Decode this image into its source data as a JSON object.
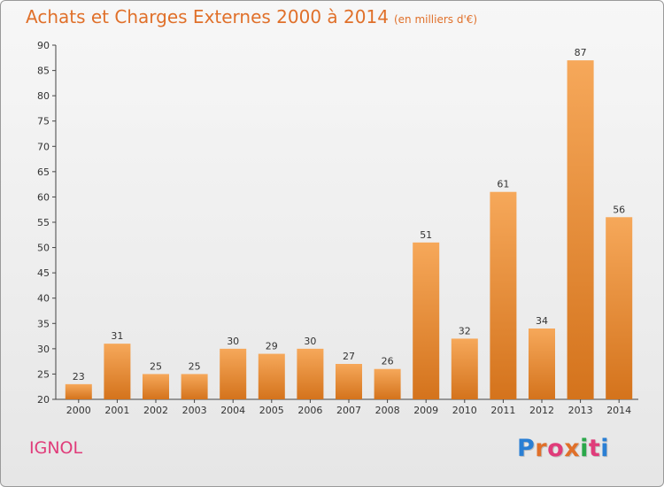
{
  "title": {
    "main": "Achats et Charges Externes 2000 à 2014",
    "unit": "(en milliers d'€)"
  },
  "commune": "IGNOL",
  "logo": {
    "letters": [
      "P",
      "r",
      "o",
      "x",
      "i",
      "t",
      "i"
    ],
    "colors": [
      "#2a7fd4",
      "#e0702a",
      "#e03c7a",
      "#e0702a",
      "#2aa84a",
      "#e03c7a",
      "#2a7fd4"
    ]
  },
  "colors": {
    "bar_light": "#f6a85a",
    "bar_dark": "#d4731c",
    "title": "#e0702a",
    "commune": "#e03c7a"
  },
  "chart_data": {
    "type": "bar",
    "title": "Achats et Charges Externes 2000 à 2014",
    "subtitle": "(en milliers d'€)",
    "xlabel": "",
    "ylabel": "",
    "categories": [
      "2000",
      "2001",
      "2002",
      "2003",
      "2004",
      "2005",
      "2006",
      "2007",
      "2008",
      "2009",
      "2010",
      "2011",
      "2012",
      "2013",
      "2014"
    ],
    "values": [
      23,
      31,
      25,
      25,
      30,
      29,
      30,
      27,
      26,
      51,
      32,
      61,
      34,
      87,
      56
    ],
    "ylim": [
      20,
      90
    ],
    "yticks": [
      20,
      25,
      30,
      35,
      40,
      45,
      50,
      55,
      60,
      65,
      70,
      75,
      80,
      85,
      90
    ],
    "grid": false,
    "data_labels": true
  }
}
